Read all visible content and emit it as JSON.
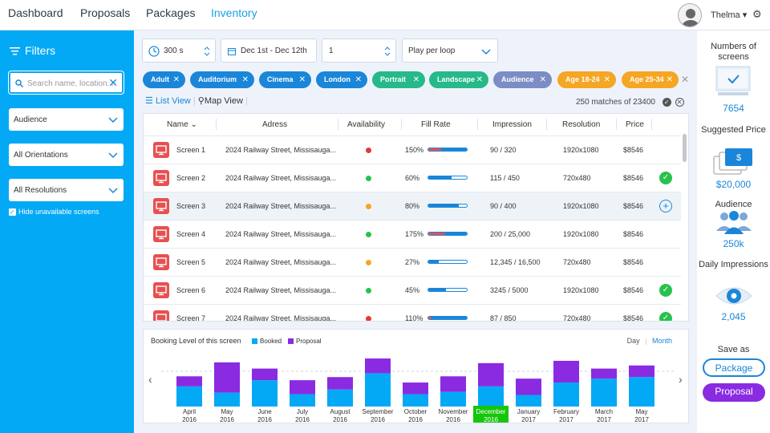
{
  "nav": {
    "items": [
      "Dashboard",
      "Proposals",
      "Packages",
      "Inventory"
    ],
    "user": "Thelma ▾"
  },
  "filters": {
    "title": "Filters",
    "search_placeholder": "Search name, location...",
    "audience": "Audience",
    "orientations": "All Orientations",
    "resolutions": "All Resolutions",
    "hide_label": "Hide unavailable screens"
  },
  "controls": {
    "duration": "300 s",
    "dates": "Dec 1st - Dec 12th",
    "quantity": "1",
    "play_mode": "Play per loop"
  },
  "tags": [
    "Adult",
    "Auditorium",
    "Cinema",
    "London",
    "Portrait",
    "Landscape",
    "Audience",
    "Age 18-24",
    "Age 25-34"
  ],
  "views": {
    "list": "List View",
    "map": "Map View",
    "matches": "250 matches of 23400"
  },
  "table": {
    "headers": [
      "Name ⌄",
      "Adress",
      "Availability",
      "Fill Rate",
      "Impression",
      "Resolution",
      "Price"
    ],
    "rows": [
      {
        "name": "Screen 1",
        "address": "2024 Railway Street, Missisauga...",
        "availability": "red",
        "fill": "150%",
        "fill_value": 150,
        "impression": "90 / 320",
        "resolution": "1920x1080",
        "price": "$8546",
        "action": ""
      },
      {
        "name": "Screen 2",
        "address": "2024 Railway Street, Missisauga...",
        "availability": "green",
        "fill": "60%",
        "fill_value": 60,
        "impression": "115 / 450",
        "resolution": "720x480",
        "price": "$8546",
        "action": "check"
      },
      {
        "name": "Screen 3",
        "address": "2024 Railway Street, Missisauga...",
        "availability": "yellow",
        "fill": "80%",
        "fill_value": 80,
        "impression": "90 / 400",
        "resolution": "1920x1080",
        "price": "$8546",
        "action": "add"
      },
      {
        "name": "Screen 4",
        "address": "2024 Railway Street, Missisauga...",
        "availability": "green",
        "fill": "175%",
        "fill_value": 175,
        "impression": "200 / 25,000",
        "resolution": "1920x1080",
        "price": "$8546",
        "action": ""
      },
      {
        "name": "Screen 5",
        "address": "2024 Railway Street, Missisauga...",
        "availability": "yellow",
        "fill": "27%",
        "fill_value": 27,
        "impression": "12,345 / 16,500",
        "resolution": "720x480",
        "price": "$8546",
        "action": ""
      },
      {
        "name": "Screen 6",
        "address": "2024 Railway Street, Missisauga...",
        "availability": "green",
        "fill": "45%",
        "fill_value": 45,
        "impression": "3245 / 5000",
        "resolution": "1920x1080",
        "price": "$8546",
        "action": "check"
      },
      {
        "name": "Screen 7",
        "address": "2024 Railway Street, Missisauga...",
        "availability": "red",
        "fill": "110%",
        "fill_value": 110,
        "impression": "87 / 850",
        "resolution": "720x480",
        "price": "$8546",
        "action": "check"
      }
    ]
  },
  "chart_data": {
    "type": "bar",
    "stacked": true,
    "title": "Booking Level of this screen",
    "toggle": [
      "Day",
      "Month"
    ],
    "selected": "Month",
    "categories": [
      [
        "April",
        "2016"
      ],
      [
        "May",
        "2016"
      ],
      [
        "June",
        "2016"
      ],
      [
        "July",
        "2016"
      ],
      [
        "August",
        "2016"
      ],
      [
        "September",
        "2016"
      ],
      [
        "October",
        "2016"
      ],
      [
        "November",
        "2016"
      ],
      [
        "December",
        "2016"
      ],
      [
        "January",
        "2017"
      ],
      [
        "February",
        "2017"
      ],
      [
        "March",
        "2017"
      ],
      [
        "May",
        "2017"
      ]
    ],
    "highlighted": 8,
    "series": [
      {
        "name": "Booked",
        "color": "#03a9f4",
        "values": [
          26,
          18,
          34,
          16,
          22,
          43,
          16,
          19,
          26,
          15,
          31,
          36,
          38
        ]
      },
      {
        "name": "Proposal",
        "color": "#8a2be2",
        "values": [
          13,
          39,
          15,
          18,
          16,
          19,
          15,
          20,
          30,
          21,
          28,
          13,
          15
        ]
      }
    ]
  },
  "summary": {
    "screens_label": "Numbers of screens",
    "screens_value": "7654",
    "price_label": "Suggested Price",
    "price_value": "$20,000",
    "audience_label": "Audience",
    "audience_value": "250k",
    "impressions_label": "Daily Impressions",
    "impressions_value": "2,045",
    "save_as": "Save as",
    "package_btn": "Package",
    "proposal_btn": "Proposal"
  },
  "colors": {
    "accent": "#03a9f4",
    "link": "#1a86d9",
    "purple": "#8a2be2",
    "green": "#27c24c",
    "red": "#e53935",
    "yellow": "#f5a623"
  }
}
